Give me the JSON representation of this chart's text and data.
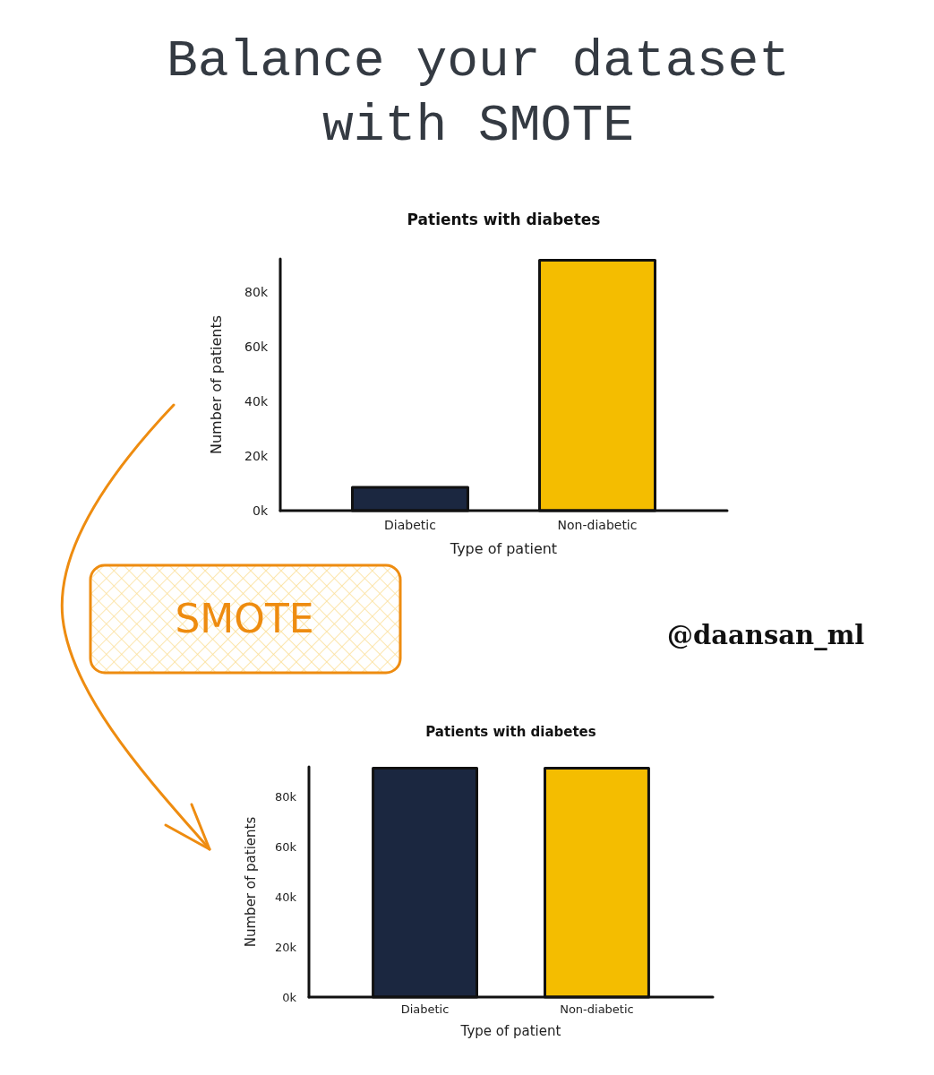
{
  "chart_data": [
    {
      "type": "other",
      "title": "Balance your dataset with SMOTE"
    },
    {
      "type": "bar",
      "title": "Patients with diabetes",
      "xlabel": "Type of patient",
      "ylabel": "Number of patients",
      "categories": [
        "Diabetic",
        "Non-diabetic"
      ],
      "values": [
        8500,
        91500
      ],
      "colors": [
        "#1b2740",
        "#f4bd00"
      ],
      "ylim": [
        0,
        92000
      ],
      "yticks": [
        {
          "value": 0,
          "label": "0k"
        },
        {
          "value": 20000,
          "label": "20k"
        },
        {
          "value": 40000,
          "label": "40k"
        },
        {
          "value": 60000,
          "label": "60k"
        },
        {
          "value": 80000,
          "label": "80k"
        }
      ]
    },
    {
      "type": "other",
      "annotations": [
        "SMOTE",
        "@daansan_ml"
      ]
    },
    {
      "type": "bar",
      "title": "Patients with diabetes",
      "xlabel": "Type of patient",
      "ylabel": "Number of patients",
      "categories": [
        "Diabetic",
        "Non-diabetic"
      ],
      "values": [
        91500,
        91500
      ],
      "colors": [
        "#1b2740",
        "#f4bd00"
      ],
      "ylim": [
        0,
        92000
      ],
      "yticks": [
        {
          "value": 0,
          "label": "0k"
        },
        {
          "value": 20000,
          "label": "20k"
        },
        {
          "value": 40000,
          "label": "40k"
        },
        {
          "value": 60000,
          "label": "60k"
        },
        {
          "value": 80000,
          "label": "80k"
        }
      ]
    }
  ]
}
